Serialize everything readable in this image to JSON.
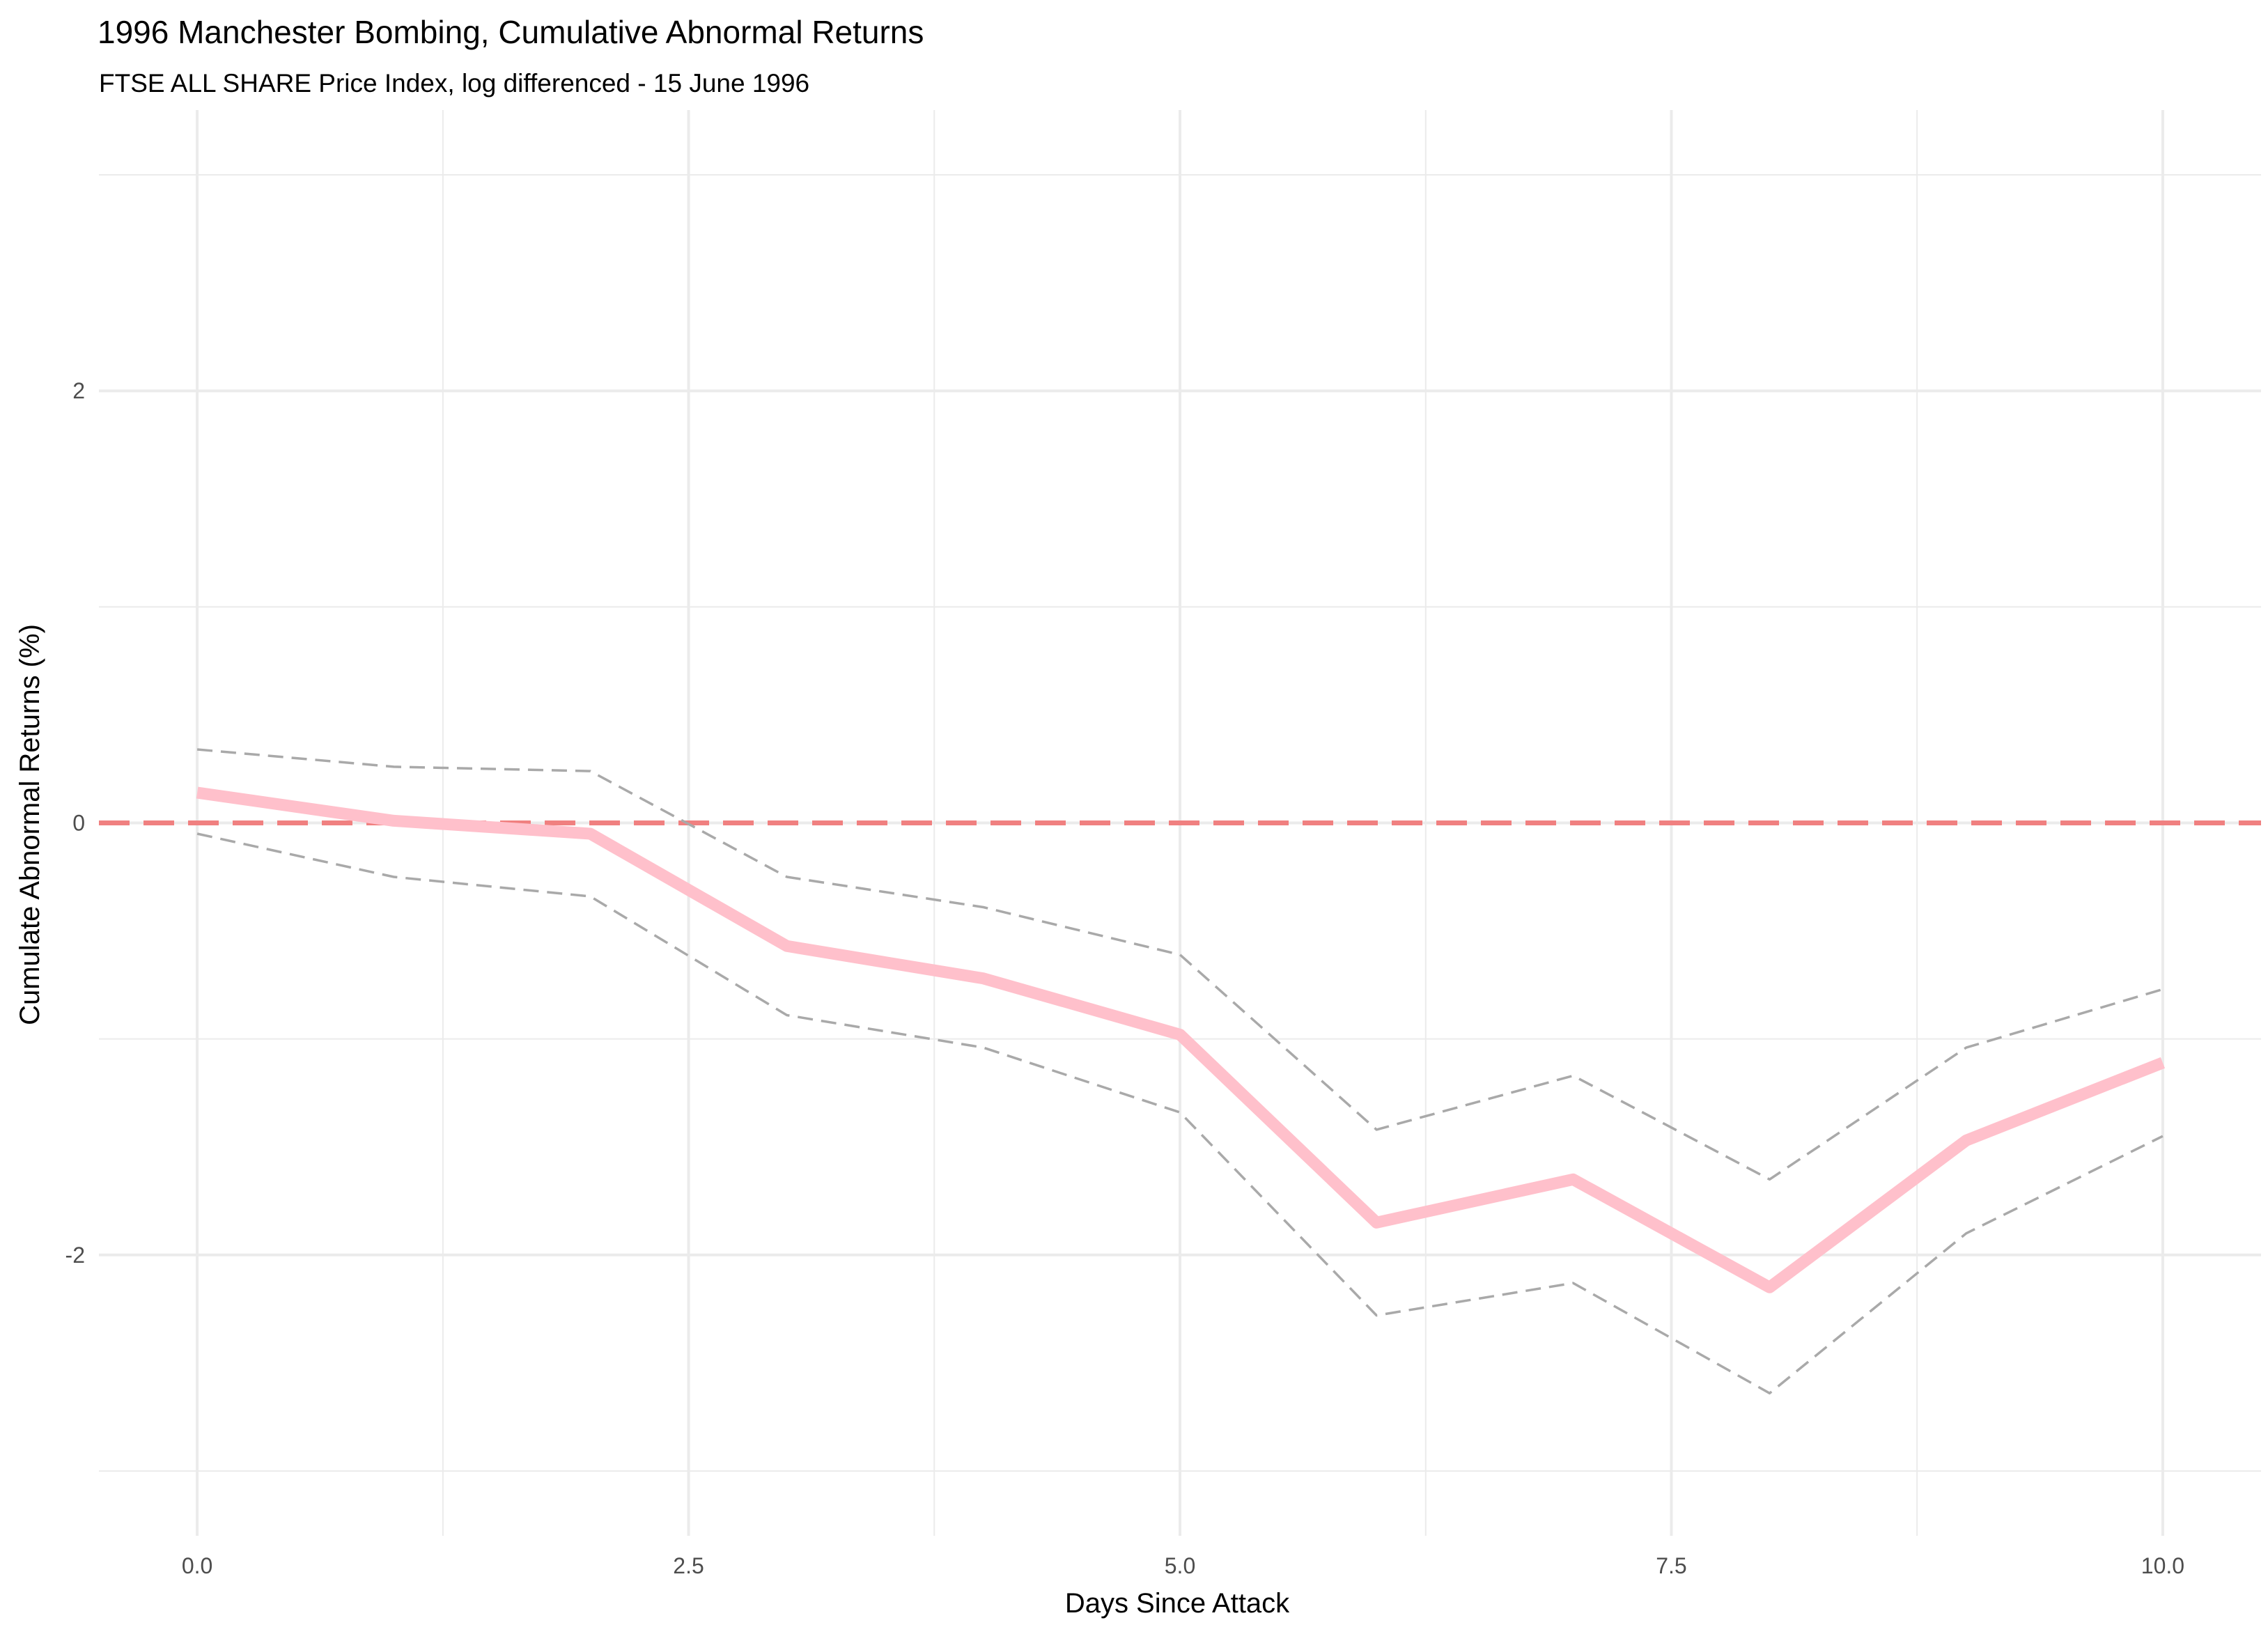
{
  "chart_data": {
    "type": "line",
    "title": "1996 Manchester Bombing, Cumulative Abnormal Returns",
    "subtitle": "FTSE ALL SHARE Price Index, log differenced - 15 June 1996",
    "xlabel": "Days Since Attack",
    "ylabel": "Cumulate Abnormal Returns (%)",
    "xlim": [
      -0.5,
      10.5
    ],
    "ylim": [
      -3.3,
      3.3
    ],
    "x_ticks": [
      0,
      2.5,
      5,
      7.5,
      10
    ],
    "x_tick_labels": [
      "0.0",
      "2.5",
      "5.0",
      "7.5",
      "10.0"
    ],
    "y_ticks": [
      -2,
      0,
      2
    ],
    "y_tick_labels": [
      "-2",
      "0",
      "2"
    ],
    "grid": true,
    "x": [
      0,
      1,
      2,
      3,
      4,
      5,
      6,
      7,
      8,
      9,
      10
    ],
    "series": [
      {
        "role": "estimate",
        "values": [
          0.14,
          0.01,
          -0.05,
          -0.57,
          -0.72,
          -0.98,
          -1.85,
          -1.65,
          -2.15,
          -1.47,
          -1.11
        ],
        "color": "#ffc0cb",
        "style": "solid"
      },
      {
        "role": "upper",
        "values": [
          0.34,
          0.26,
          0.24,
          -0.25,
          -0.39,
          -0.61,
          -1.42,
          -1.17,
          -1.65,
          -1.04,
          -0.77
        ],
        "color": "#a9a9a9",
        "style": "dashed"
      },
      {
        "role": "lower",
        "values": [
          -0.05,
          -0.25,
          -0.34,
          -0.89,
          -1.04,
          -1.34,
          -2.28,
          -2.13,
          -2.64,
          -1.9,
          -1.45
        ],
        "color": "#a9a9a9",
        "style": "dashed"
      }
    ],
    "reference_line": {
      "y": 0,
      "color": "#f08080",
      "style": "dashed"
    },
    "colors": {
      "panel_grid": "#ebebeb",
      "background": "#ffffff"
    }
  }
}
